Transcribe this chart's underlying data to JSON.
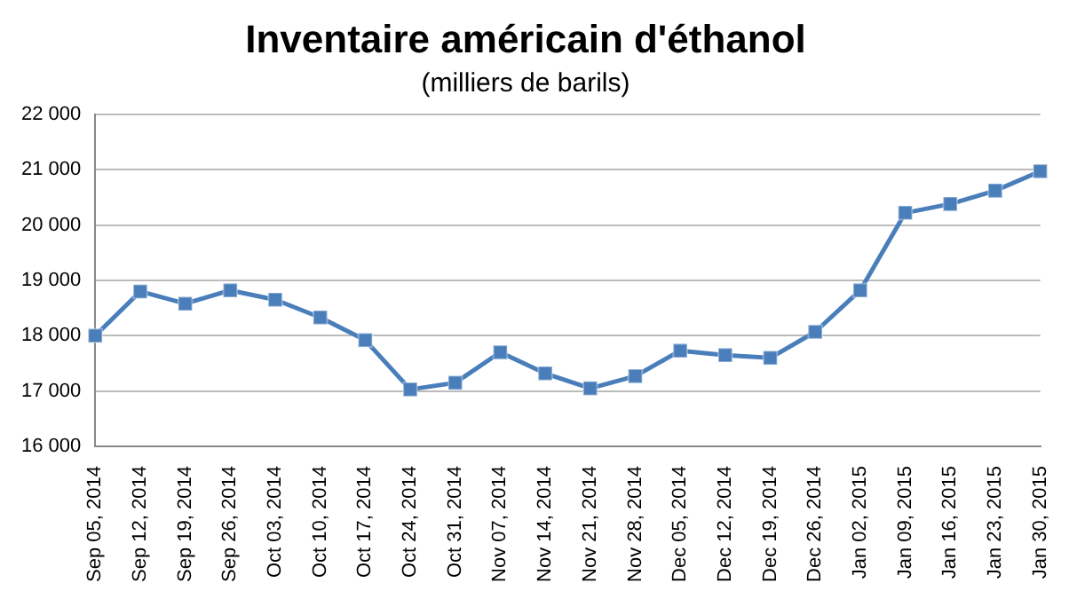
{
  "chart_data": {
    "type": "line",
    "title": "Inventaire américain d'éthanol",
    "subtitle": "(milliers de barils)",
    "categories": [
      "Sep 05, 2014",
      "Sep 12, 2014",
      "Sep 19, 2014",
      "Sep 26, 2014",
      "Oct 03, 2014",
      "Oct 10, 2014",
      "Oct 17, 2014",
      "Oct 24, 2014",
      "Oct 31, 2014",
      "Nov 07, 2014",
      "Nov 14, 2014",
      "Nov 21, 2014",
      "Nov 28, 2014",
      "Dec 05, 2014",
      "Dec 12, 2014",
      "Dec 19, 2014",
      "Dec 26, 2014",
      "Jan 02, 2015",
      "Jan 09, 2015",
      "Jan 16, 2015",
      "Jan 23, 2015",
      "Jan 30, 2015"
    ],
    "series": [
      {
        "color": "#4a7ebb",
        "values": [
          18000,
          18800,
          18580,
          18820,
          18650,
          18330,
          17920,
          17030,
          17150,
          17700,
          17320,
          17050,
          17270,
          17730,
          17650,
          17600,
          18070,
          18820,
          20220,
          20380,
          20620,
          20970
        ]
      }
    ],
    "ylim": [
      16000,
      22000
    ],
    "yticks": [
      {
        "value": 16000,
        "label": "16 000"
      },
      {
        "value": 17000,
        "label": "17 000"
      },
      {
        "value": 18000,
        "label": "18 000"
      },
      {
        "value": 19000,
        "label": "19 000"
      },
      {
        "value": 20000,
        "label": "20 000"
      },
      {
        "value": 21000,
        "label": "21 000"
      },
      {
        "value": 22000,
        "label": "22 000"
      }
    ],
    "grid": "y",
    "legend": false,
    "marker": "square",
    "line_style": "solid"
  }
}
